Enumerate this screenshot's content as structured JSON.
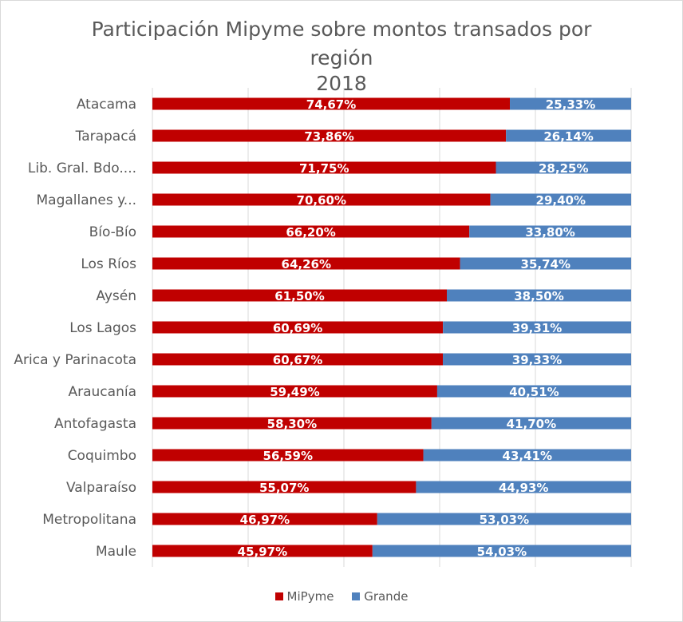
{
  "chart_data": {
    "type": "bar",
    "orientation": "horizontal",
    "stacking": "100%",
    "title_lines": [
      "Participación Mipyme sobre montos transados por",
      "región",
      "2018"
    ],
    "categories": [
      "Atacama",
      "Tarapacá",
      "Lib. Gral. Bdo....",
      "Magallanes y...",
      "Bío-Bío",
      "Los Ríos",
      "Aysén",
      "Los Lagos",
      "Arica y Parinacota",
      "Araucanía",
      "Antofagasta",
      "Coquimbo",
      "Valparaíso",
      "Metropolitana",
      "Maule"
    ],
    "series": [
      {
        "name": "MiPyme",
        "color": "#c00000",
        "values": [
          74.67,
          73.86,
          71.75,
          70.6,
          66.2,
          64.26,
          61.5,
          60.69,
          60.67,
          59.49,
          58.3,
          56.59,
          55.07,
          46.97,
          45.97
        ],
        "labels": [
          "74,67%",
          "73,86%",
          "71,75%",
          "70,60%",
          "66,20%",
          "64,26%",
          "61,50%",
          "60,69%",
          "60,67%",
          "59,49%",
          "58,30%",
          "56,59%",
          "55,07%",
          "46,97%",
          "45,97%"
        ]
      },
      {
        "name": "Grande",
        "color": "#4f81bd",
        "values": [
          25.33,
          26.14,
          28.25,
          29.4,
          33.8,
          35.74,
          38.5,
          39.31,
          39.33,
          40.51,
          41.7,
          43.41,
          44.93,
          53.03,
          54.03
        ],
        "labels": [
          "25,33%",
          "26,14%",
          "28,25%",
          "29,40%",
          "33,80%",
          "35,74%",
          "38,50%",
          "39,31%",
          "39,33%",
          "40,51%",
          "41,70%",
          "43,41%",
          "44,93%",
          "53,03%",
          "54,03%"
        ]
      }
    ],
    "xlim": [
      0,
      100
    ],
    "legend_position": "bottom",
    "grid": true
  }
}
